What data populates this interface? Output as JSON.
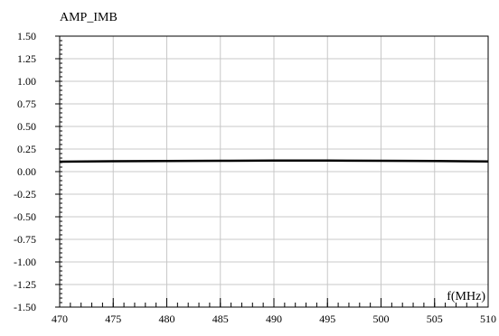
{
  "chart_data": {
    "type": "line",
    "title": "AMP_IMB",
    "xlabel": "f(MHz)",
    "ylabel": "",
    "xlim": [
      470,
      510
    ],
    "ylim": [
      -1.5,
      1.5
    ],
    "x_ticks": [
      470,
      475,
      480,
      485,
      490,
      495,
      500,
      505,
      510
    ],
    "x_tick_labels": [
      "470",
      "475",
      "480",
      "485",
      "490",
      "495",
      "500",
      "505",
      "510"
    ],
    "y_ticks": [
      1.5,
      1.25,
      1.0,
      0.75,
      0.5,
      0.25,
      0.0,
      -0.25,
      -0.5,
      -0.75,
      -1.0,
      -1.25,
      -1.5
    ],
    "y_tick_labels": [
      "1.50",
      "1.25",
      "1.00",
      "0.75",
      "0.50",
      "0.25",
      "0.00",
      "-0.25",
      "-0.50",
      "-0.75",
      "-1.00",
      "-1.25",
      "-1.50"
    ],
    "grid": true,
    "series": [
      {
        "color": "#000000",
        "x": [
          470,
          475,
          480,
          485,
          490,
          495,
          500,
          505,
          510
        ],
        "values": [
          0.11,
          0.115,
          0.118,
          0.12,
          0.122,
          0.122,
          0.12,
          0.118,
          0.112
        ]
      }
    ]
  }
}
